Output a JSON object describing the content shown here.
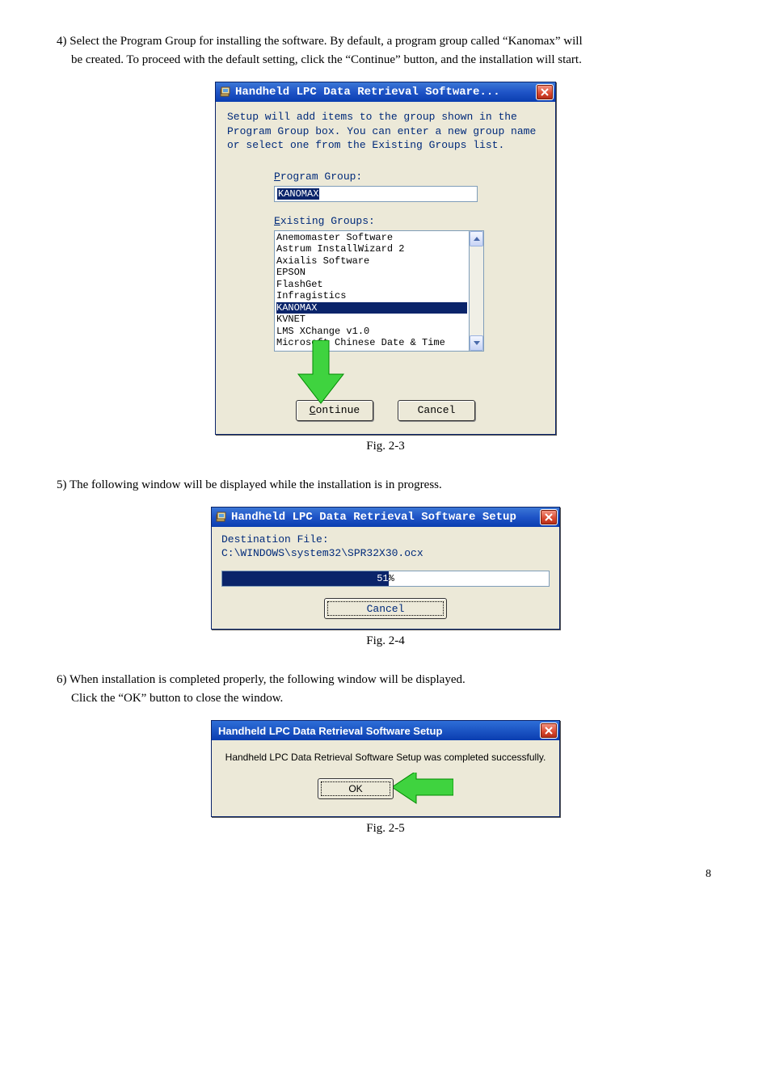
{
  "para1a": "4) Select the Program Group for installing the software. By default, a program group called “Kanomax” will",
  "para1b": "be created. To proceed with the default setting, click the “Continue” button, and the installation will start.",
  "para2": "5) The following window will be displayed while the installation is in progress.",
  "para3a": "6) When installation is completed properly, the following window will be displayed.",
  "para3b": "Click the “OK” button to close the window.",
  "fig1": "Fig. 2-3",
  "fig2": "Fig. 2-4",
  "fig3": "Fig. 2-5",
  "pageNum": "8",
  "dlg1": {
    "title": "Handheld LPC Data Retrieval Software...",
    "intro": "Setup will add items to the group shown in the Program Group box. You can enter a new group name or select one from the Existing Groups list.",
    "programGroupLabel_pre": "P",
    "programGroupLabel_post": "rogram Group:",
    "programGroupValue": "KANOMAX",
    "existingLabel_pre": "E",
    "existingLabel_post": "xisting Groups:",
    "items": [
      "Anemomaster Software",
      "Astrum InstallWizard 2",
      "Axialis Software",
      "EPSON",
      "FlashGet",
      "Infragistics",
      "KANOMAX",
      "KVNET",
      "LMS XChange v1.0",
      "Microsoft Chinese Date & Time"
    ],
    "selectedIndex": 6,
    "continue_pre": "C",
    "continue_post": "ontinue",
    "cancel": "Cancel"
  },
  "dlg2": {
    "title": "Handheld LPC Data Retrieval Software Setup",
    "destLabel": "Destination File:",
    "destPath": "C:\\WINDOWS\\system32\\SPR32X30.ocx",
    "percent": 51,
    "percentText": "51%",
    "cancel": "Cancel"
  },
  "dlg3": {
    "title": "Handheld LPC Data Retrieval Software Setup",
    "msg": "Handheld LPC Data Retrieval Software Setup was completed successfully.",
    "ok": "OK"
  },
  "colors": {
    "green": "#3fd33f",
    "greenStroke": "#008a00"
  }
}
